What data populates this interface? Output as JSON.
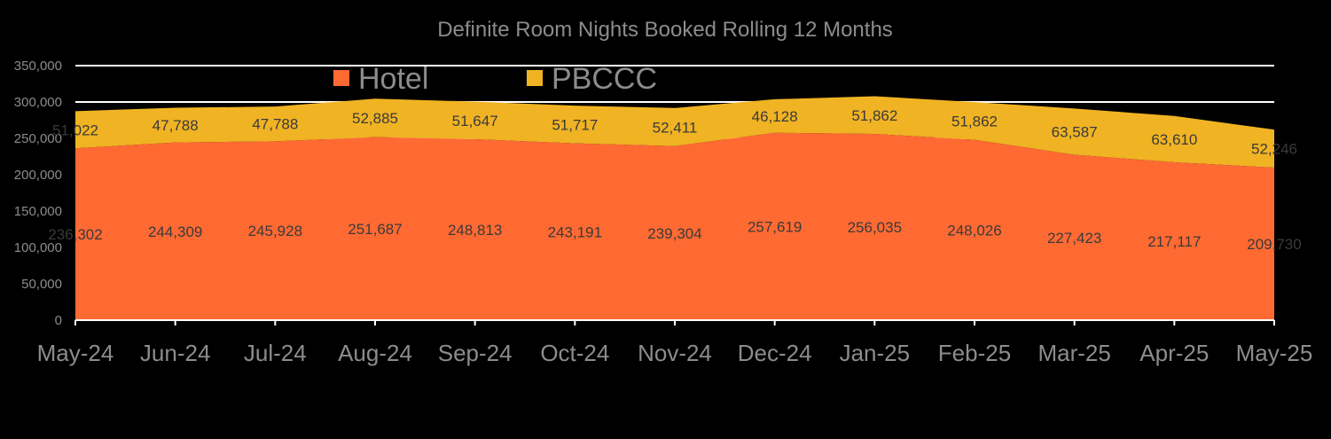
{
  "chart_data": {
    "type": "area",
    "title": "Definite Room Nights Booked  Rolling  12 Months",
    "categories": [
      "May-24",
      "Jun-24",
      "Jul-24",
      "Aug-24",
      "Sep-24",
      "Oct-24",
      "Nov-24",
      "Dec-24",
      "Jan-25",
      "Feb-25",
      "Mar-25",
      "Apr-25",
      "May-25"
    ],
    "stacked": true,
    "series": [
      {
        "name": "Hotel",
        "color": "#ff6a33",
        "values": [
          236302,
          244309,
          245928,
          251687,
          248813,
          243191,
          239304,
          257619,
          256035,
          248026,
          227423,
          217117,
          209730
        ],
        "labels": [
          "236,302",
          "244,309",
          "245,928",
          "251,687",
          "248,813",
          "243,191",
          "239,304",
          "257,619",
          "256,035",
          "248,026",
          "227,423",
          "217,117",
          "209,730"
        ]
      },
      {
        "name": "PBCCC",
        "color": "#f0b323",
        "values": [
          51022,
          47788,
          47788,
          52885,
          51647,
          51717,
          52411,
          46128,
          51862,
          51862,
          63587,
          63610,
          52246
        ],
        "labels": [
          "51,022",
          "47,788",
          "47,788",
          "52,885",
          "51,647",
          "51,717",
          "52,411",
          "46,128",
          "51,862",
          "51,862",
          "63,587",
          "63,610",
          "52,246"
        ]
      }
    ],
    "ylim": [
      0,
      350000
    ],
    "yticks": [
      "0",
      "50,000",
      "100,000",
      "150,000",
      "200,000",
      "250,000",
      "300,000",
      "350,000"
    ],
    "ytick_values": [
      0,
      50000,
      100000,
      150000,
      200000,
      250000,
      300000,
      350000
    ],
    "grid": true,
    "legend_position": "top-left"
  }
}
